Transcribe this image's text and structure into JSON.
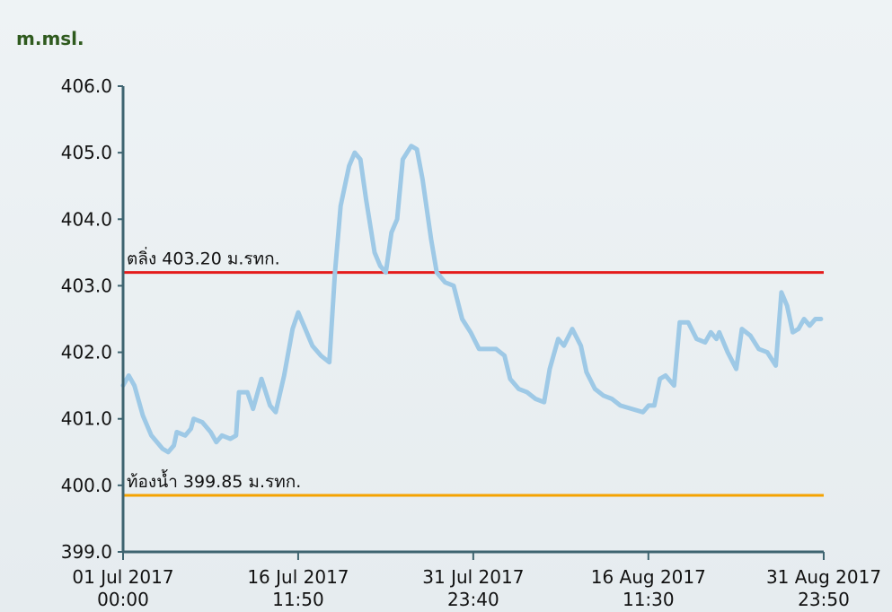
{
  "chart_data": {
    "type": "line",
    "ylabel": "m.msl.",
    "ylim": [
      399.0,
      406.0
    ],
    "yticks": [
      "399.0",
      "400.0",
      "401.0",
      "402.0",
      "403.0",
      "404.0",
      "405.0",
      "406.0"
    ],
    "xlim": [
      "2017-07-01 00:00",
      "2017-08-31 23:50"
    ],
    "xticks": [
      {
        "value": "2017-07-01 00:00",
        "line1": "01 Jul 2017",
        "line2": "00:00"
      },
      {
        "value": "2017-07-16 11:50",
        "line1": "16 Jul 2017",
        "line2": "11:50"
      },
      {
        "value": "2017-07-31 23:40",
        "line1": "31 Jul 2017",
        "line2": "23:40"
      },
      {
        "value": "2017-08-16 11:30",
        "line1": "16 Aug 2017",
        "line2": "11:30"
      },
      {
        "value": "2017-08-31 23:50",
        "line1": "31 Aug 2017",
        "line2": "23:50"
      }
    ],
    "grid": false,
    "series": [
      {
        "color": "#9ec9e6",
        "points": [
          [
            "2017-07-01 00:00",
            401.5
          ],
          [
            "2017-07-01 12:00",
            401.65
          ],
          [
            "2017-07-02 00:00",
            401.5
          ],
          [
            "2017-07-02 18:00",
            401.05
          ],
          [
            "2017-07-03 12:00",
            400.75
          ],
          [
            "2017-07-04 12:00",
            400.55
          ],
          [
            "2017-07-05 00:00",
            400.5
          ],
          [
            "2017-07-05 12:00",
            400.6
          ],
          [
            "2017-07-05 18:00",
            400.8
          ],
          [
            "2017-07-06 12:00",
            400.75
          ],
          [
            "2017-07-07 00:00",
            400.85
          ],
          [
            "2017-07-07 06:00",
            401.0
          ],
          [
            "2017-07-08 00:00",
            400.95
          ],
          [
            "2017-07-08 18:00",
            400.8
          ],
          [
            "2017-07-09 06:00",
            400.65
          ],
          [
            "2017-07-09 18:00",
            400.75
          ],
          [
            "2017-07-10 12:00",
            400.7
          ],
          [
            "2017-07-11 00:00",
            400.75
          ],
          [
            "2017-07-11 06:00",
            401.4
          ],
          [
            "2017-07-12 00:00",
            401.4
          ],
          [
            "2017-07-12 12:00",
            401.15
          ],
          [
            "2017-07-13 06:00",
            401.6
          ],
          [
            "2017-07-14 00:00",
            401.2
          ],
          [
            "2017-07-14 12:00",
            401.1
          ],
          [
            "2017-07-15 06:00",
            401.65
          ],
          [
            "2017-07-16 00:00",
            402.35
          ],
          [
            "2017-07-16 12:00",
            402.6
          ],
          [
            "2017-07-17 00:00",
            402.4
          ],
          [
            "2017-07-17 18:00",
            402.1
          ],
          [
            "2017-07-18 12:00",
            401.95
          ],
          [
            "2017-07-19 06:00",
            401.85
          ],
          [
            "2017-07-19 18:00",
            403.2
          ],
          [
            "2017-07-20 06:00",
            404.2
          ],
          [
            "2017-07-21 00:00",
            404.8
          ],
          [
            "2017-07-21 12:00",
            405.0
          ],
          [
            "2017-07-22 00:00",
            404.9
          ],
          [
            "2017-07-22 12:00",
            404.3
          ],
          [
            "2017-07-23 06:00",
            403.5
          ],
          [
            "2017-07-23 18:00",
            403.3
          ],
          [
            "2017-07-24 06:00",
            403.2
          ],
          [
            "2017-07-24 18:00",
            403.8
          ],
          [
            "2017-07-25 06:00",
            404.0
          ],
          [
            "2017-07-25 18:00",
            404.9
          ],
          [
            "2017-07-26 12:00",
            405.1
          ],
          [
            "2017-07-27 00:00",
            405.05
          ],
          [
            "2017-07-27 12:00",
            404.6
          ],
          [
            "2017-07-28 06:00",
            403.7
          ],
          [
            "2017-07-28 18:00",
            403.2
          ],
          [
            "2017-07-29 12:00",
            403.05
          ],
          [
            "2017-07-30 06:00",
            403.0
          ],
          [
            "2017-07-31 00:00",
            402.5
          ],
          [
            "2017-07-31 18:00",
            402.3
          ],
          [
            "2017-08-01 12:00",
            402.05
          ],
          [
            "2017-08-02 06:00",
            402.05
          ],
          [
            "2017-08-03 00:00",
            402.05
          ],
          [
            "2017-08-03 18:00",
            401.95
          ],
          [
            "2017-08-04 06:00",
            401.6
          ],
          [
            "2017-08-05 00:00",
            401.45
          ],
          [
            "2017-08-05 18:00",
            401.4
          ],
          [
            "2017-08-06 12:00",
            401.3
          ],
          [
            "2017-08-07 06:00",
            401.25
          ],
          [
            "2017-08-07 18:00",
            401.75
          ],
          [
            "2017-08-08 12:00",
            402.2
          ],
          [
            "2017-08-09 00:00",
            402.1
          ],
          [
            "2017-08-09 18:00",
            402.35
          ],
          [
            "2017-08-10 12:00",
            402.1
          ],
          [
            "2017-08-11 00:00",
            401.7
          ],
          [
            "2017-08-11 18:00",
            401.45
          ],
          [
            "2017-08-12 12:00",
            401.35
          ],
          [
            "2017-08-13 06:00",
            401.3
          ],
          [
            "2017-08-14 00:00",
            401.2
          ],
          [
            "2017-08-15 00:00",
            401.15
          ],
          [
            "2017-08-16 00:00",
            401.1
          ],
          [
            "2017-08-16 12:00",
            401.2
          ],
          [
            "2017-08-17 00:00",
            401.2
          ],
          [
            "2017-08-17 12:00",
            401.6
          ],
          [
            "2017-08-18 00:00",
            401.65
          ],
          [
            "2017-08-18 18:00",
            401.5
          ],
          [
            "2017-08-19 06:00",
            402.45
          ],
          [
            "2017-08-20 00:00",
            402.45
          ],
          [
            "2017-08-20 18:00",
            402.2
          ],
          [
            "2017-08-21 12:00",
            402.15
          ],
          [
            "2017-08-22 00:00",
            402.3
          ],
          [
            "2017-08-22 12:00",
            402.2
          ],
          [
            "2017-08-22 18:00",
            402.3
          ],
          [
            "2017-08-23 12:00",
            402.0
          ],
          [
            "2017-08-24 06:00",
            401.75
          ],
          [
            "2017-08-24 18:00",
            402.35
          ],
          [
            "2017-08-25 12:00",
            402.25
          ],
          [
            "2017-08-26 06:00",
            402.05
          ],
          [
            "2017-08-27 00:00",
            402.0
          ],
          [
            "2017-08-27 18:00",
            401.8
          ],
          [
            "2017-08-28 06:00",
            402.9
          ],
          [
            "2017-08-28 18:00",
            402.7
          ],
          [
            "2017-08-29 06:00",
            402.3
          ],
          [
            "2017-08-29 18:00",
            402.35
          ],
          [
            "2017-08-30 06:00",
            402.5
          ],
          [
            "2017-08-30 18:00",
            402.4
          ],
          [
            "2017-08-31 06:00",
            402.5
          ],
          [
            "2017-08-31 18:00",
            402.5
          ]
        ]
      }
    ],
    "reference_lines": [
      {
        "value": 403.2,
        "label": "ตลิ่ง 403.20 ม.รทก.",
        "color": "#e41b1b"
      },
      {
        "value": 399.85,
        "label": "ท้องน้ำ 399.85 ม.รทก.",
        "color": "#f5a300"
      }
    ],
    "axis_color": "#3e6470"
  }
}
